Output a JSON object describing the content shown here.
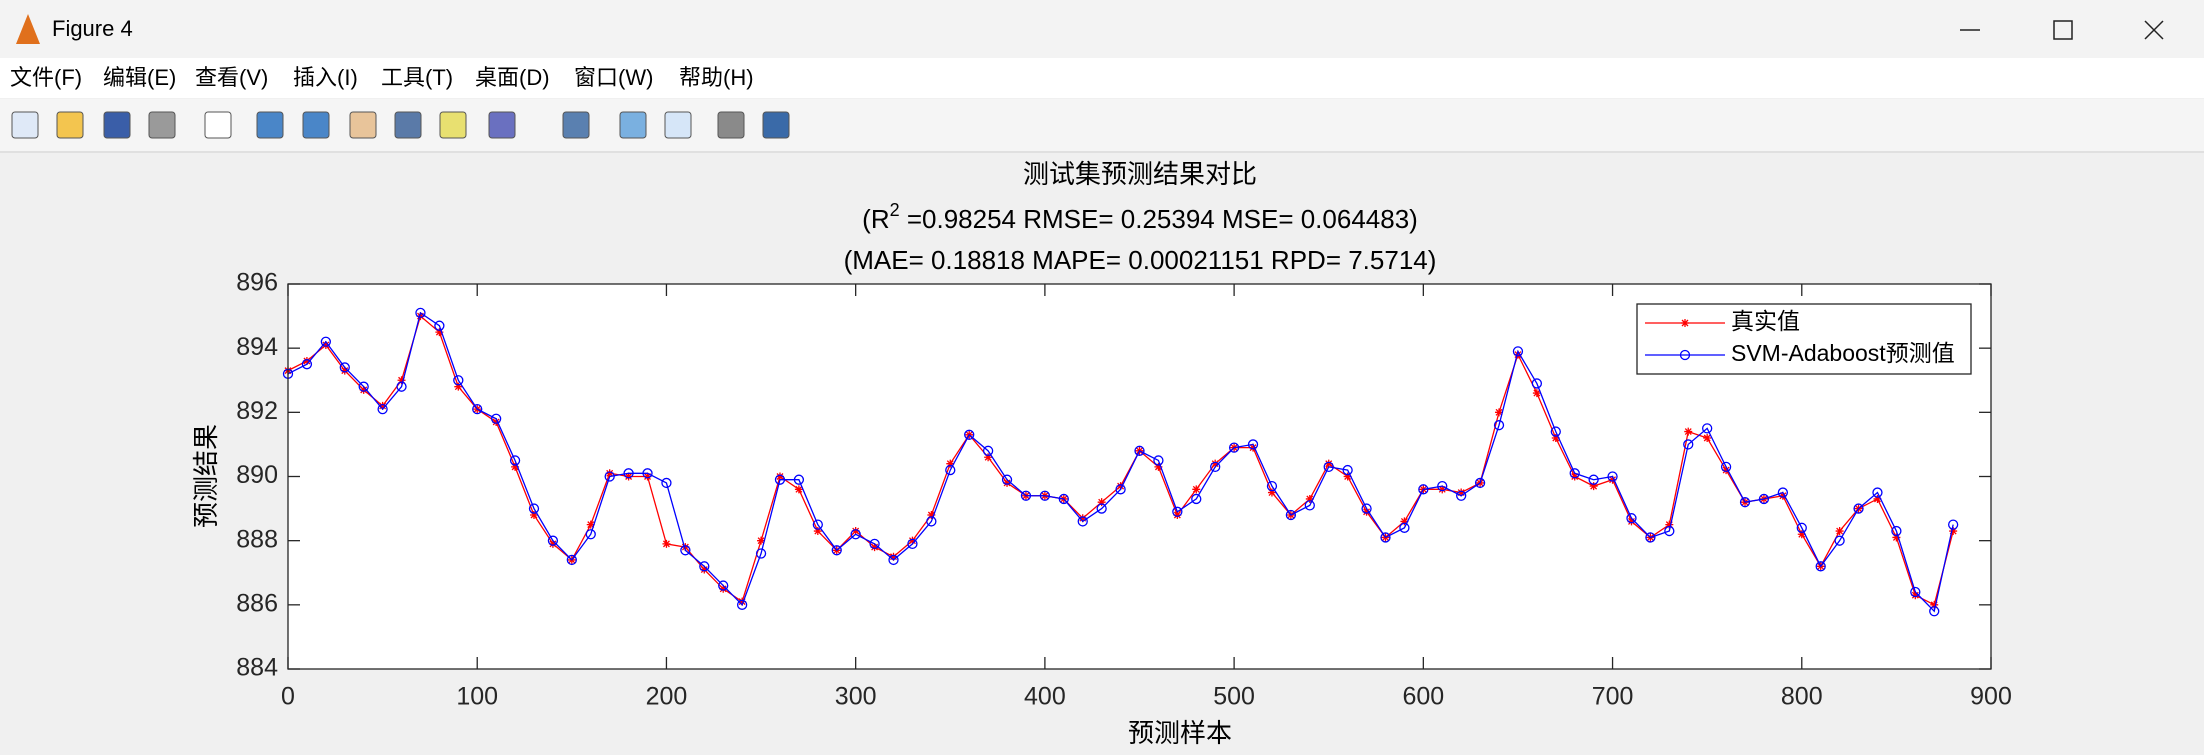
{
  "window": {
    "title": "Figure 4",
    "menu": [
      "文件(F)",
      "编辑(E)",
      "查看(V)",
      "插入(I)",
      "工具(T)",
      "桌面(D)",
      "窗口(W)",
      "帮助(H)"
    ]
  },
  "chart_data": {
    "type": "line",
    "title": "测试集预测结果对比",
    "metrics_line1": {
      "prefix": "(R",
      "superscript": "2",
      "rest": " =0.98254 RMSE= 0.25394 MSE= 0.064483)"
    },
    "metrics_line2": "(MAE= 0.18818 MAPE= 0.00021151 RPD= 7.5714)",
    "x_label": "预测样本",
    "y_label": "预测结果",
    "x": [
      0,
      10,
      20,
      30,
      40,
      50,
      60,
      70,
      80,
      90,
      100,
      110,
      120,
      130,
      140,
      150,
      160,
      170,
      180,
      190,
      200,
      210,
      220,
      230,
      240,
      250,
      260,
      270,
      280,
      290,
      300,
      310,
      320,
      330,
      340,
      350,
      360,
      370,
      380,
      390,
      400,
      410,
      420,
      430,
      440,
      450,
      460,
      470,
      480,
      490,
      500,
      510,
      520,
      530,
      540,
      550,
      560,
      570,
      580,
      590,
      600,
      610,
      620,
      630,
      640,
      650,
      660,
      670,
      680,
      690,
      700,
      710,
      720,
      730,
      740,
      750,
      760,
      770,
      780,
      790,
      800,
      810,
      820,
      830,
      840,
      850,
      860,
      870,
      880
    ],
    "series": [
      {
        "name": "真实值",
        "color": "#ff0000",
        "marker": "star",
        "values": [
          893.3,
          893.6,
          894.1,
          893.3,
          892.7,
          892.2,
          893.0,
          895.0,
          894.5,
          892.8,
          892.1,
          891.7,
          890.3,
          888.8,
          887.9,
          887.4,
          888.5,
          890.1,
          890.0,
          890.0,
          887.9,
          887.8,
          887.1,
          886.5,
          886.1,
          888.0,
          890.0,
          889.6,
          888.3,
          887.7,
          888.3,
          887.8,
          887.5,
          888.0,
          888.8,
          890.4,
          891.3,
          890.6,
          889.8,
          889.4,
          889.4,
          889.3,
          888.7,
          889.2,
          889.7,
          890.8,
          890.3,
          888.8,
          889.6,
          890.4,
          890.9,
          890.9,
          889.5,
          888.8,
          889.3,
          890.4,
          890.0,
          888.9,
          888.1,
          888.6,
          889.6,
          889.6,
          889.5,
          889.8,
          892.0,
          893.8,
          892.6,
          891.2,
          890.0,
          889.7,
          889.9,
          888.6,
          888.1,
          888.5,
          891.4,
          891.2,
          890.2,
          889.2,
          889.3,
          889.4,
          888.2,
          887.2,
          888.3,
          889.0,
          889.3,
          888.1,
          886.3,
          886.0,
          888.3
        ]
      },
      {
        "name": "SVM-Adaboost预测值",
        "color": "#0000ff",
        "marker": "circle",
        "values": [
          893.2,
          893.5,
          894.2,
          893.4,
          892.8,
          892.1,
          892.8,
          895.1,
          894.7,
          893.0,
          892.1,
          891.8,
          890.5,
          889.0,
          888.0,
          887.4,
          888.2,
          890.0,
          890.1,
          890.1,
          889.8,
          887.7,
          887.2,
          886.6,
          886.0,
          887.6,
          889.9,
          889.9,
          888.5,
          887.7,
          888.2,
          887.9,
          887.4,
          887.9,
          888.6,
          890.2,
          891.3,
          890.8,
          889.9,
          889.4,
          889.4,
          889.3,
          888.6,
          889.0,
          889.6,
          890.8,
          890.5,
          888.9,
          889.3,
          890.3,
          890.9,
          891.0,
          889.7,
          888.8,
          889.1,
          890.3,
          890.2,
          889.0,
          888.1,
          888.4,
          889.6,
          889.7,
          889.4,
          889.8,
          891.6,
          893.9,
          892.9,
          891.4,
          890.1,
          889.9,
          890.0,
          888.7,
          888.1,
          888.3,
          891.0,
          891.5,
          890.3,
          889.2,
          889.3,
          889.5,
          888.4,
          887.2,
          888.0,
          889.0,
          889.5,
          888.3,
          886.4,
          885.8,
          888.5
        ]
      }
    ],
    "xlim": [
      0,
      900
    ],
    "xticks": [
      0,
      100,
      200,
      300,
      400,
      500,
      600,
      700,
      800,
      900
    ],
    "ylim": [
      884,
      896
    ],
    "yticks": [
      884,
      886,
      888,
      890,
      892,
      894,
      896
    ],
    "grid": false,
    "legend": "upper right"
  }
}
